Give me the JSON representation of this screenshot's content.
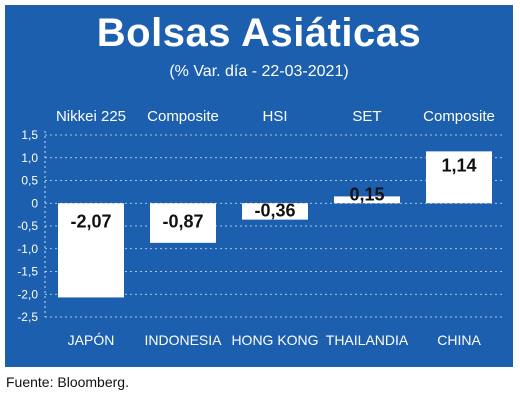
{
  "chart_data": {
    "type": "bar",
    "title": "Bolsas Asiáticas",
    "subtitle": "(% Var. día - 22-03-2021)",
    "categories": [
      "JAPÓN",
      "INDONESIA",
      "HONG KONG",
      "THAILANDIA",
      "CHINA"
    ],
    "index_names": [
      "Nikkei 225",
      "Composite",
      "HSI",
      "SET",
      "Composite"
    ],
    "values": [
      -2.07,
      -0.87,
      -0.36,
      0.15,
      1.14
    ],
    "value_labels": [
      "-2,07",
      "-0,87",
      "-0,36",
      "0,15",
      "1,14"
    ],
    "ylim": [
      -2.5,
      1.5
    ],
    "yticks": [
      1.5,
      1.0,
      0.5,
      0,
      -0.5,
      -1.0,
      -1.5,
      -2.0,
      -2.5
    ],
    "ytick_labels": [
      "1,5",
      "1,0",
      "0,5",
      "0",
      "-0,5",
      "-1,0",
      "-1,5",
      "-2,0",
      "-2,5"
    ],
    "xlabel": "",
    "ylabel": "",
    "grid": true,
    "colors": {
      "background": "#1c5fae",
      "bar": "#ffffff",
      "grid": "#ffffff",
      "text": "#ffffff",
      "label_text": "#111111"
    }
  },
  "source": "Fuente: Bloomberg."
}
